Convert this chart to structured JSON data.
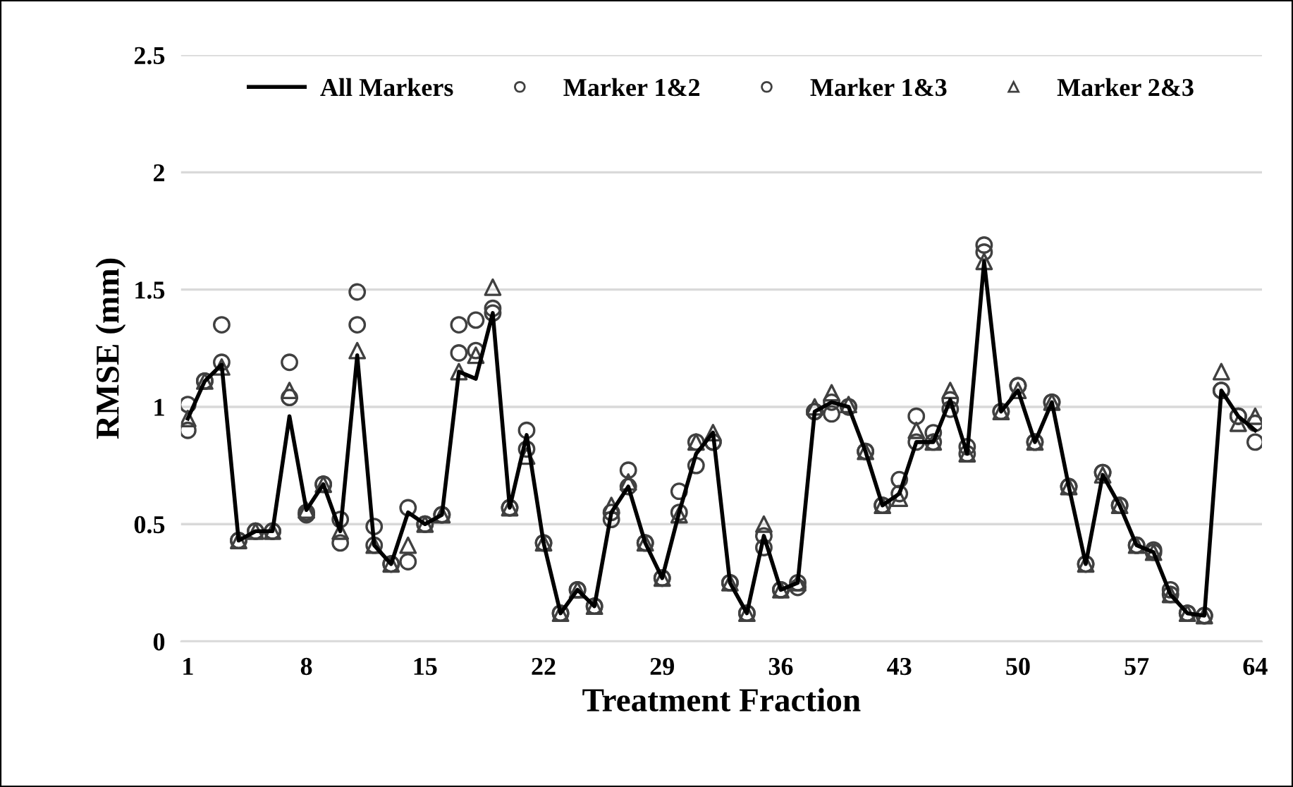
{
  "chart_data": {
    "type": "line",
    "xlabel": "Treatment Fraction",
    "ylabel": "RMSE (mm)",
    "x": [
      1,
      2,
      3,
      4,
      5,
      6,
      7,
      8,
      9,
      10,
      11,
      12,
      13,
      14,
      15,
      16,
      17,
      18,
      19,
      20,
      21,
      22,
      23,
      24,
      25,
      26,
      27,
      28,
      29,
      30,
      31,
      32,
      33,
      34,
      35,
      36,
      37,
      38,
      39,
      40,
      41,
      42,
      43,
      44,
      45,
      46,
      47,
      48,
      49,
      50,
      51,
      52,
      53,
      54,
      55,
      56,
      57,
      58,
      59,
      60,
      61,
      62,
      63,
      64
    ],
    "xlim": [
      0.6,
      64.4
    ],
    "xticks": [
      1,
      8,
      15,
      22,
      29,
      36,
      43,
      50,
      57,
      64
    ],
    "ylim": [
      0,
      2.5
    ],
    "yticks": [
      0,
      0.5,
      1,
      1.5,
      2,
      2.5
    ],
    "grid": "y",
    "legend": "top",
    "series": [
      {
        "name": "All Markers",
        "color": "#000000",
        "marker": "none",
        "line_style": "solid",
        "values": [
          0.95,
          1.11,
          1.18,
          0.43,
          0.47,
          0.47,
          0.96,
          0.56,
          0.67,
          0.47,
          1.22,
          0.41,
          0.33,
          0.55,
          0.5,
          0.54,
          1.15,
          1.12,
          1.4,
          0.57,
          0.88,
          0.42,
          0.12,
          0.22,
          0.15,
          0.55,
          0.66,
          0.42,
          0.27,
          0.55,
          0.8,
          0.89,
          0.25,
          0.12,
          0.45,
          0.22,
          0.25,
          0.98,
          1.02,
          1.0,
          0.81,
          0.58,
          0.63,
          0.85,
          0.85,
          1.03,
          0.8,
          1.62,
          0.98,
          1.07,
          0.85,
          1.02,
          0.66,
          0.33,
          0.71,
          0.58,
          0.41,
          0.38,
          0.2,
          0.12,
          0.11,
          1.07,
          0.96,
          0.9
        ]
      },
      {
        "name": "Marker 1&2",
        "type": "scatter",
        "color": "#404040",
        "marker": "circle",
        "values": [
          1.01,
          1.11,
          1.35,
          0.43,
          0.47,
          0.47,
          1.19,
          0.54,
          0.67,
          0.42,
          1.49,
          0.49,
          0.33,
          0.57,
          0.5,
          0.54,
          1.35,
          1.37,
          1.42,
          0.57,
          0.9,
          0.42,
          0.12,
          0.22,
          0.15,
          0.52,
          0.73,
          0.42,
          0.27,
          0.64,
          0.75,
          0.85,
          0.25,
          0.12,
          0.4,
          0.22,
          0.23,
          0.98,
          0.97,
          1.0,
          0.81,
          0.58,
          0.69,
          0.96,
          0.89,
          0.99,
          0.83,
          1.69,
          0.98,
          1.09,
          0.85,
          1.02,
          0.66,
          0.33,
          0.72,
          0.58,
          0.41,
          0.39,
          0.22,
          0.12,
          0.11,
          1.07,
          0.96,
          0.85
        ]
      },
      {
        "name": "Marker 1&3",
        "type": "scatter",
        "color": "#404040",
        "marker": "circle",
        "values": [
          0.9,
          1.11,
          1.19,
          0.43,
          0.47,
          0.47,
          1.04,
          0.55,
          0.67,
          0.52,
          1.35,
          0.41,
          0.33,
          0.34,
          0.5,
          0.54,
          1.23,
          1.24,
          1.4,
          0.57,
          0.82,
          0.42,
          0.12,
          0.22,
          0.15,
          0.55,
          0.66,
          0.42,
          0.27,
          0.55,
          0.85,
          0.85,
          0.25,
          0.12,
          0.45,
          0.22,
          0.25,
          0.98,
          1.02,
          1.0,
          0.81,
          0.58,
          0.63,
          0.85,
          0.85,
          1.03,
          0.8,
          1.66,
          0.98,
          1.09,
          0.85,
          1.02,
          0.66,
          0.33,
          0.72,
          0.58,
          0.41,
          0.38,
          0.2,
          0.12,
          0.11,
          1.07,
          0.96,
          0.93
        ]
      },
      {
        "name": "Marker 2&3",
        "type": "scatter",
        "color": "#404040",
        "marker": "triangle",
        "values": [
          0.95,
          1.11,
          1.17,
          0.43,
          0.47,
          0.47,
          1.07,
          0.56,
          0.67,
          0.47,
          1.24,
          0.41,
          0.33,
          0.41,
          0.5,
          0.54,
          1.15,
          1.22,
          1.51,
          0.57,
          0.79,
          0.42,
          0.12,
          0.22,
          0.15,
          0.58,
          0.68,
          0.42,
          0.27,
          0.54,
          0.85,
          0.89,
          0.25,
          0.12,
          0.5,
          0.22,
          0.25,
          1.0,
          1.06,
          1.01,
          0.81,
          0.58,
          0.61,
          0.9,
          0.85,
          1.07,
          0.8,
          1.62,
          0.98,
          1.07,
          0.85,
          1.02,
          0.66,
          0.33,
          0.71,
          0.58,
          0.41,
          0.38,
          0.2,
          0.12,
          0.11,
          1.15,
          0.93,
          0.96
        ]
      }
    ]
  }
}
